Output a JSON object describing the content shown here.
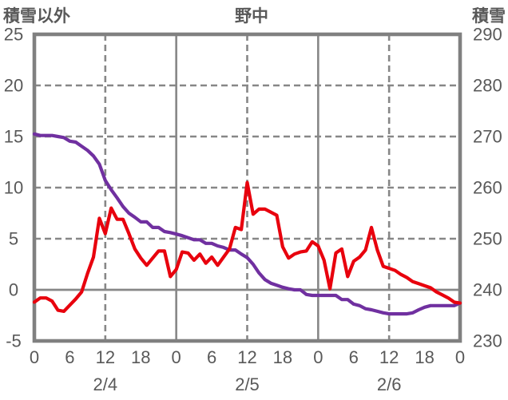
{
  "header": {
    "left_axis_label": "積雪以外",
    "title": "野中",
    "right_axis_label": "積雪"
  },
  "colors": {
    "background": "#ffffff",
    "frame": "#808080",
    "grid": "#878787",
    "text": "#595959",
    "red_series": "#e8000d",
    "purple_series": "#7030a0"
  },
  "chart_data": {
    "type": "line",
    "title": "野中",
    "x_unit": "hours from 2/4 00:00",
    "x_range_hours": [
      0,
      72
    ],
    "x_start_hour": 0,
    "x_step_hours": 1,
    "hour_tick_interval": 6,
    "hour_tick_labels": [
      "0",
      "6",
      "12",
      "18",
      "0",
      "6",
      "12",
      "18",
      "0",
      "6",
      "12",
      "18",
      "0"
    ],
    "date_labels": [
      "2/4",
      "2/5",
      "2/6"
    ],
    "date_label_center_hours": [
      12,
      36,
      60
    ],
    "left_axis": {
      "label": "積雪以外",
      "min": -5,
      "max": 25,
      "tick_step": 5,
      "ticks": [
        25,
        20,
        15,
        10,
        5,
        0,
        -5
      ]
    },
    "right_axis": {
      "label": "積雪",
      "min": 230,
      "max": 290,
      "tick_step": 10,
      "ticks": [
        290,
        280,
        270,
        260,
        250,
        240,
        230
      ]
    },
    "grid": {
      "h_dashed_left_values": [
        20,
        15,
        10,
        5
      ],
      "zero_line_left_value": 0,
      "v_dashed_hours": [
        12,
        36,
        60
      ],
      "v_solid_hours": [
        24,
        48
      ],
      "legend": "none"
    },
    "series": [
      {
        "name": "積雪",
        "axis": "right",
        "color": "#7030a0",
        "values": [
          270.5,
          270.2,
          270.2,
          270.2,
          270.0,
          269.8,
          269.1,
          268.9,
          268.1,
          267.3,
          266.2,
          264.6,
          261.4,
          259.6,
          258.0,
          256.3,
          255.0,
          254.2,
          253.3,
          253.3,
          252.2,
          252.2,
          251.4,
          251.2,
          250.9,
          250.6,
          250.2,
          249.8,
          249.8,
          249.1,
          249.1,
          248.6,
          248.3,
          247.8,
          247.8,
          247.0,
          246.3,
          245.0,
          243.3,
          242.0,
          241.3,
          240.9,
          240.5,
          240.2,
          240.0,
          240.0,
          239.1,
          238.9,
          238.9,
          238.9,
          238.9,
          238.9,
          238.1,
          238.1,
          237.2,
          236.9,
          236.3,
          236.1,
          235.8,
          235.5,
          235.3,
          235.3,
          235.3,
          235.3,
          235.5,
          236.1,
          236.6,
          236.9,
          236.9,
          236.9,
          236.9,
          236.9,
          237.4
        ]
      },
      {
        "name": "積雪以外",
        "axis": "left",
        "color": "#e8000d",
        "values": [
          -1.2,
          -0.8,
          -0.8,
          -1.1,
          -2.0,
          -2.1,
          -1.5,
          -0.9,
          -0.2,
          1.6,
          3.2,
          7.0,
          5.5,
          8.0,
          6.9,
          6.9,
          5.5,
          4.0,
          3.1,
          2.4,
          3.1,
          3.8,
          3.8,
          1.3,
          2.0,
          3.7,
          3.6,
          2.9,
          3.5,
          2.6,
          3.2,
          2.4,
          3.2,
          4.0,
          6.1,
          5.9,
          10.5,
          7.4,
          7.9,
          7.9,
          7.6,
          7.3,
          4.2,
          3.1,
          3.5,
          3.7,
          3.8,
          4.7,
          4.3,
          2.9,
          0.1,
          3.6,
          4.0,
          1.3,
          2.8,
          3.2,
          3.9,
          6.1,
          3.9,
          2.3,
          2.1,
          1.9,
          1.5,
          1.2,
          0.8,
          0.6,
          0.4,
          0.2,
          -0.2,
          -0.5,
          -0.8,
          -1.2,
          -1.3
        ]
      }
    ]
  }
}
